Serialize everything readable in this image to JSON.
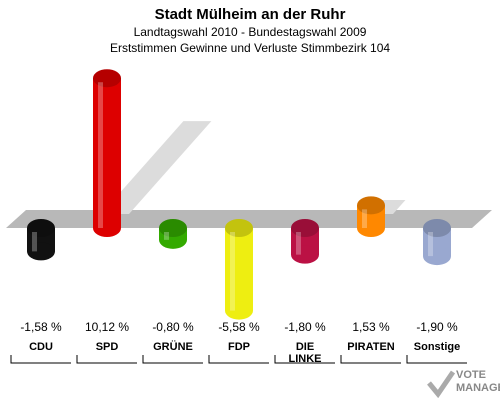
{
  "header": {
    "title": "Stadt Mülheim an der Ruhr",
    "subtitle1": "Landtagswahl 2010 - Bundestagswahl 2009",
    "subtitle2": "Erststimmen Gewinne und Verluste Stimmbezirk 104"
  },
  "chart_data": {
    "type": "bar",
    "title": "Stadt Mülheim an der Ruhr",
    "subtitle": "Landtagswahl 2010 - Bundestagswahl 2009 / Erststimmen Gewinne und Verluste Stimmbezirk 104",
    "categories": [
      "CDU",
      "SPD",
      "GRÜNE",
      "FDP",
      "DIE LINKE",
      "PIRATEN",
      "Sonstige"
    ],
    "values": [
      -1.58,
      10.12,
      -0.8,
      -5.58,
      -1.8,
      1.53,
      -1.9
    ],
    "value_labels": [
      "-1,58 %",
      "10,12 %",
      "-0,80 %",
      "-5,58 %",
      "-1,80 %",
      "1,53 %",
      "-1,90 %"
    ],
    "colors": [
      "#111111",
      "#dd0000",
      "#33aa00",
      "#eeee11",
      "#bb1144",
      "#ff8800",
      "#99a8d0"
    ],
    "grid": false,
    "legend": "none"
  },
  "logo": {
    "line1": "VOTE",
    "line2": "MANAGER"
  }
}
